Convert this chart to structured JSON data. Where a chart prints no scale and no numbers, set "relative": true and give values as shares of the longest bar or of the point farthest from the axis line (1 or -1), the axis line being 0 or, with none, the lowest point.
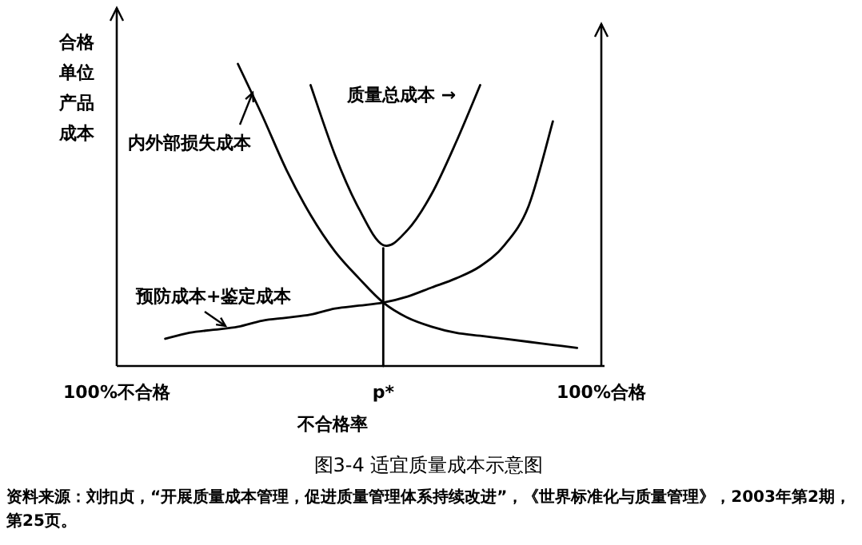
{
  "chart_data": {
    "type": "line",
    "relative": true,
    "title": "图3-4 适宜质量成本示意图",
    "xlabel": "不合格率",
    "ylabel": "合格单位产品成本",
    "categories": [
      "100%不合格",
      null,
      null,
      null,
      null,
      null,
      null,
      null,
      null,
      null,
      null,
      "p*",
      null,
      null,
      null,
      null,
      null,
      null,
      null,
      null,
      "100%合格"
    ],
    "series": [
      {
        "name": "内外部损失成本",
        "color": "#000000",
        "values": [
          null,
          null,
          null,
          null,
          null,
          1.0,
          0.83,
          0.65,
          0.5,
          0.38,
          0.29,
          0.21,
          0.16,
          0.13,
          0.11,
          0.1,
          0.09,
          0.08,
          0.07,
          0.06,
          null
        ]
      },
      {
        "name": "质量总成本 →",
        "color": "#000000",
        "values": [
          null,
          null,
          null,
          null,
          null,
          null,
          null,
          null,
          0.93,
          0.7,
          0.52,
          0.4,
          0.45,
          0.57,
          0.74,
          0.93,
          null,
          null,
          null,
          null,
          null
        ]
      },
      {
        "name": "预防成本+鉴定成本",
        "color": "#000000",
        "values": [
          null,
          null,
          0.09,
          0.11,
          0.12,
          0.13,
          0.15,
          0.16,
          0.17,
          0.19,
          0.2,
          0.21,
          0.23,
          0.26,
          0.29,
          0.33,
          0.4,
          0.53,
          0.81,
          null,
          null
        ]
      },
      {
        "x": [
          "p*",
          "p*"
        ],
        "color": "#000000",
        "values": [
          0,
          0.39
        ]
      }
    ],
    "annotations": [
      "资料来源：刘扣贞，“开展质量成本管理，促进质量管理体系持续改进”，《世界标准化与质量管理》，2003年第2期，第25页。"
    ]
  }
}
